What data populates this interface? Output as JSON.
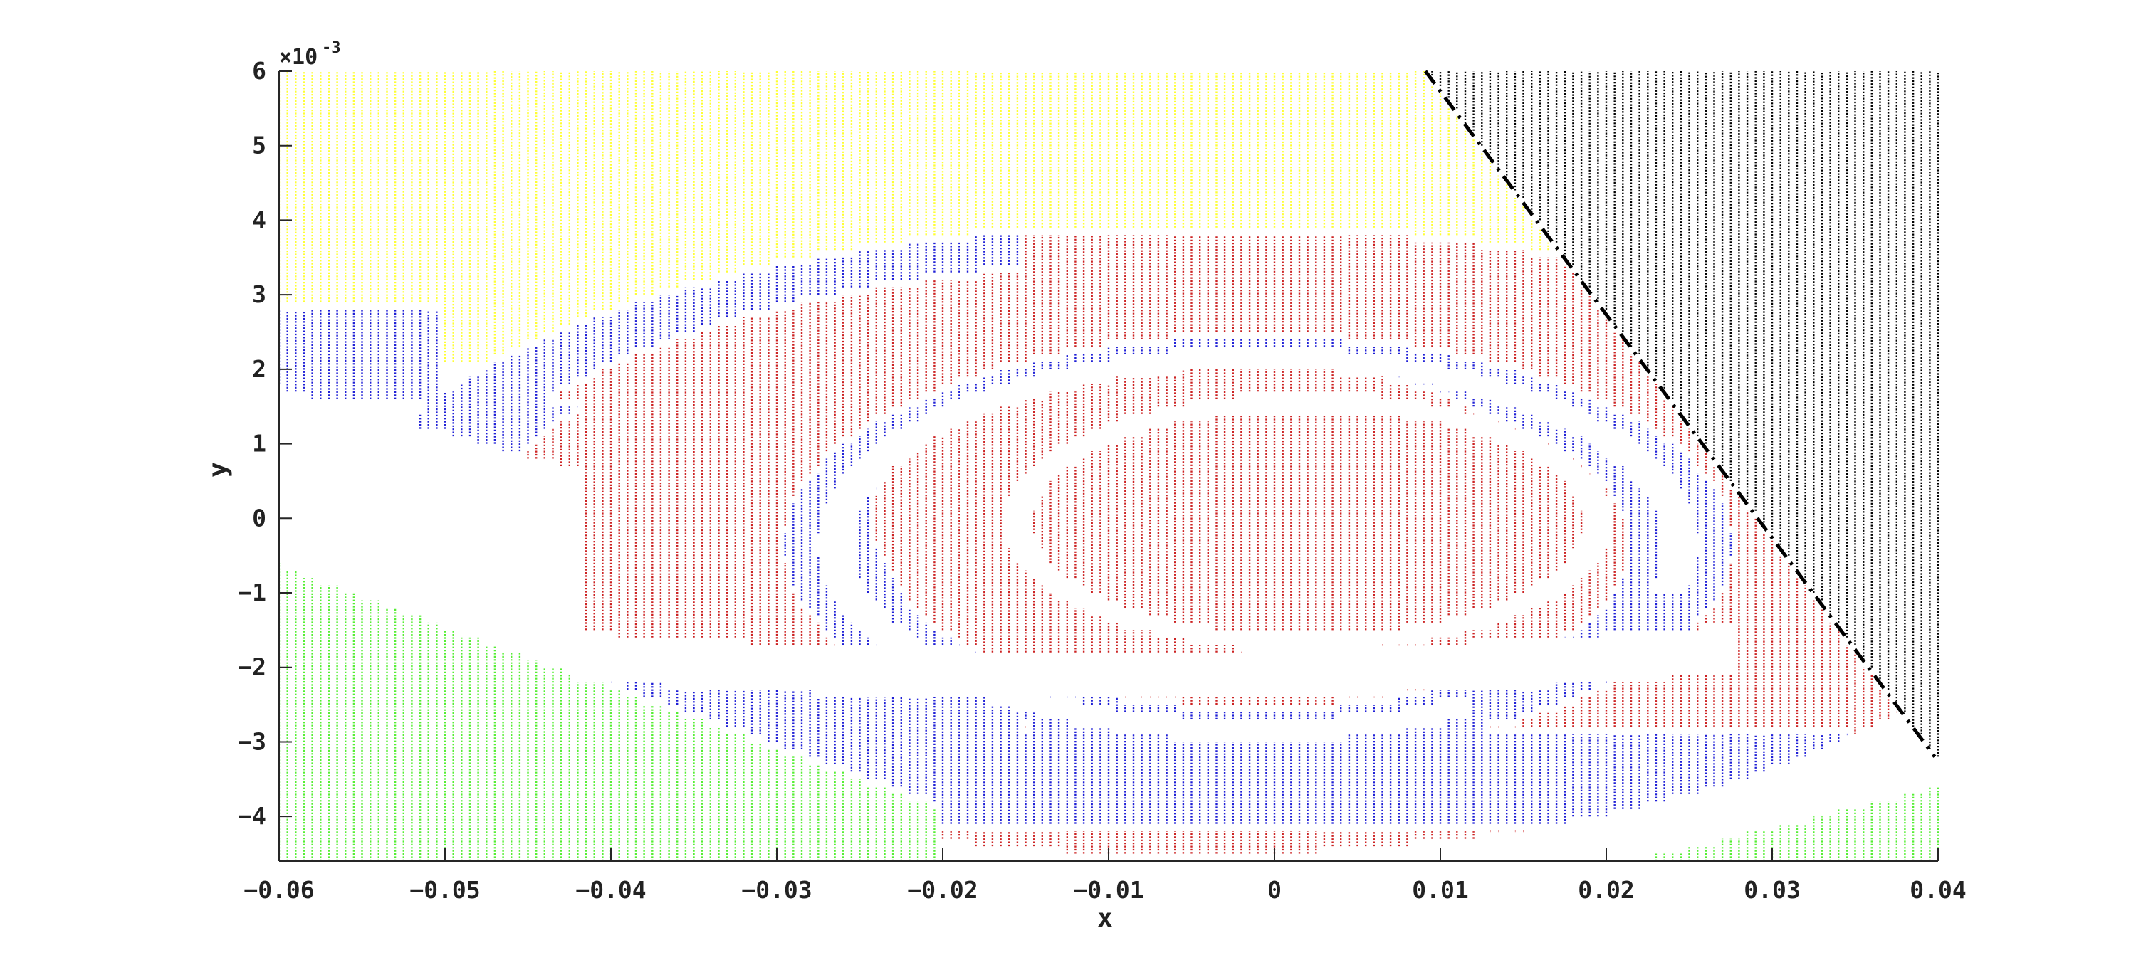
{
  "chart_data": {
    "type": "scatter",
    "title": "",
    "xlabel": "x",
    "ylabel": "y",
    "xlim": [
      -0.06,
      0.04
    ],
    "ylim": [
      -0.0046,
      0.006
    ],
    "y_exponent_label": "×10",
    "y_exponent_value": "-3",
    "x_ticks": [
      {
        "value": -0.06,
        "label": "−0.06"
      },
      {
        "value": -0.05,
        "label": "−0.05"
      },
      {
        "value": -0.04,
        "label": "−0.04"
      },
      {
        "value": -0.03,
        "label": "−0.03"
      },
      {
        "value": -0.02,
        "label": "−0.02"
      },
      {
        "value": -0.01,
        "label": "−0.01"
      },
      {
        "value": 0,
        "label": "0"
      },
      {
        "value": 0.01,
        "label": "0.01"
      },
      {
        "value": 0.02,
        "label": "0.02"
      },
      {
        "value": 0.03,
        "label": "0.03"
      },
      {
        "value": 0.04,
        "label": "0.04"
      }
    ],
    "y_ticks": [
      {
        "value": 0.006,
        "label": "6"
      },
      {
        "value": 0.005,
        "label": "5"
      },
      {
        "value": 0.004,
        "label": "4"
      },
      {
        "value": 0.003,
        "label": "3"
      },
      {
        "value": 0.002,
        "label": "2"
      },
      {
        "value": 0.001,
        "label": "1"
      },
      {
        "value": 0,
        "label": "0"
      },
      {
        "value": -0.001,
        "label": "−1"
      },
      {
        "value": -0.002,
        "label": "−2"
      },
      {
        "value": -0.003,
        "label": "−3"
      },
      {
        "value": -0.004,
        "label": "−4"
      }
    ],
    "grid": false,
    "legend": "none",
    "regions": [
      {
        "color_name": "yellow",
        "color": "#ffff33",
        "description_of_extent": "upper part of domain above the spiral region, left of boundary line"
      },
      {
        "color_name": "black",
        "color": "#000000",
        "description_of_extent": "right of the dashed boundary line"
      },
      {
        "color_name": "red",
        "color": "#cc2222",
        "description_of_extent": "elliptical core region"
      },
      {
        "color_name": "blue",
        "color": "#1f1fd6",
        "description_of_extent": "spiral band around the red core"
      },
      {
        "color_name": "green",
        "color": "#55ee33",
        "description_of_extent": "lower-left and lower-right corners"
      }
    ],
    "boundary_line": {
      "style": "dash-dot",
      "color": "#000000",
      "points": [
        [
          0.0091,
          0.006
        ],
        [
          0.0398,
          -0.0032
        ]
      ]
    },
    "sampling": {
      "dx": 0.0005,
      "dy": 0.0001
    }
  }
}
